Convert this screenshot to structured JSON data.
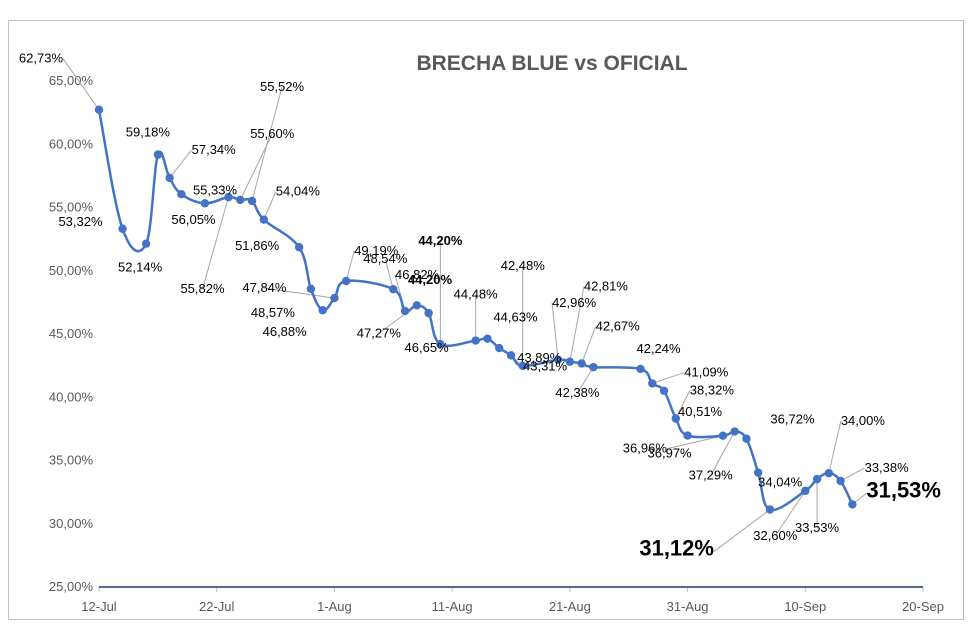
{
  "chart_data": {
    "type": "line",
    "title": "BRECHA BLUE vs OFICIAL",
    "xlabel": "",
    "ylabel": "",
    "xlim": [
      "2023-07-12",
      "2023-09-20"
    ],
    "ylim": [
      25,
      65
    ],
    "grid": false,
    "legend": "none",
    "x_ticks": [
      "12-Jul",
      "22-Jul",
      "1-Aug",
      "11-Aug",
      "21-Aug",
      "31-Aug",
      "10-Sep",
      "20-Sep"
    ],
    "y_ticks": [
      "25,00%",
      "30,00%",
      "35,00%",
      "40,00%",
      "45,00%",
      "50,00%",
      "55,00%",
      "60,00%",
      "65,00%"
    ],
    "line_color": "#4472c4",
    "series": [
      {
        "points": [
          {
            "x": "2023-07-12",
            "y": 62.73,
            "label": "62,73%"
          },
          {
            "x": "2023-07-14",
            "y": 53.32,
            "label": "53,32%"
          },
          {
            "x": "2023-07-16",
            "y": 52.14,
            "label": "52,14%"
          },
          {
            "x": "2023-07-17",
            "y": 59.18,
            "label": "59,18%"
          },
          {
            "x": "2023-07-18",
            "y": 57.34,
            "label": "57,34%"
          },
          {
            "x": "2023-07-19",
            "y": 56.05,
            "label": "56,05%"
          },
          {
            "x": "2023-07-21",
            "y": 55.33,
            "label": "55,33%"
          },
          {
            "x": "2023-07-23",
            "y": 55.82,
            "label": "55,82%"
          },
          {
            "x": "2023-07-24",
            "y": 55.6,
            "label": "55,60%"
          },
          {
            "x": "2023-07-25",
            "y": 55.52,
            "label": "55,52%"
          },
          {
            "x": "2023-07-26",
            "y": 54.04,
            "label": "54,04%"
          },
          {
            "x": "2023-07-29",
            "y": 51.86,
            "label": "51,86%"
          },
          {
            "x": "2023-07-30",
            "y": 48.57,
            "label": "48,57%"
          },
          {
            "x": "2023-07-31",
            "y": 46.88,
            "label": "46,88%"
          },
          {
            "x": "2023-08-01",
            "y": 47.84,
            "label": "47,84%"
          },
          {
            "x": "2023-08-02",
            "y": 49.19,
            "label": "49,19%"
          },
          {
            "x": "2023-08-06",
            "y": 48.54,
            "label": "48,54%"
          },
          {
            "x": "2023-08-07",
            "y": 46.82,
            "label": "46,82%"
          },
          {
            "x": "2023-08-08",
            "y": 47.27,
            "label": "47,27%"
          },
          {
            "x": "2023-08-09",
            "y": 46.65,
            "label": "46,65%"
          },
          {
            "x": "2023-08-10",
            "y": 44.2,
            "label": "44,20%"
          },
          {
            "x": "2023-08-13",
            "y": 44.48,
            "label": "44,48%"
          },
          {
            "x": "2023-08-14",
            "y": 44.63,
            "label": "44,63%"
          },
          {
            "x": "2023-08-15",
            "y": 43.89,
            "label": "43,89%"
          },
          {
            "x": "2023-08-16",
            "y": 43.31,
            "label": "43,31%"
          },
          {
            "x": "2023-08-17",
            "y": 42.48,
            "label": "42,48%"
          },
          {
            "x": "2023-08-20",
            "y": 42.96,
            "label": "42,96%"
          },
          {
            "x": "2023-08-21",
            "y": 42.81,
            "label": "42,81%"
          },
          {
            "x": "2023-08-22",
            "y": 42.67,
            "label": "42,67%"
          },
          {
            "x": "2023-08-23",
            "y": 42.38,
            "label": "42,38%"
          },
          {
            "x": "2023-08-27",
            "y": 42.24,
            "label": "42,24%"
          },
          {
            "x": "2023-08-28",
            "y": 41.09,
            "label": "41,09%"
          },
          {
            "x": "2023-08-29",
            "y": 40.51,
            "label": "40,51%"
          },
          {
            "x": "2023-08-30",
            "y": 38.32,
            "label": "38,32%"
          },
          {
            "x": "2023-08-31",
            "y": 36.97,
            "label": "36,97%"
          },
          {
            "x": "2023-09-03",
            "y": 36.96,
            "label": "36,96%"
          },
          {
            "x": "2023-09-04",
            "y": 37.29,
            "label": "37,29%"
          },
          {
            "x": "2023-09-05",
            "y": 36.72,
            "label": "36,72%"
          },
          {
            "x": "2023-09-06",
            "y": 34.04,
            "label": "34,04%"
          },
          {
            "x": "2023-09-07",
            "y": 31.12,
            "label": "31,12%"
          },
          {
            "x": "2023-09-10",
            "y": 32.6,
            "label": "32,60%"
          },
          {
            "x": "2023-09-11",
            "y": 33.53,
            "label": "33,53%"
          },
          {
            "x": "2023-09-12",
            "y": 34.0,
            "label": "34,00%"
          },
          {
            "x": "2023-09-13",
            "y": 33.38,
            "label": "33,38%"
          },
          {
            "x": "2023-09-14",
            "y": 31.53,
            "label": "31,53%"
          }
        ]
      }
    ],
    "extra_labels": [
      "44,20%"
    ]
  }
}
